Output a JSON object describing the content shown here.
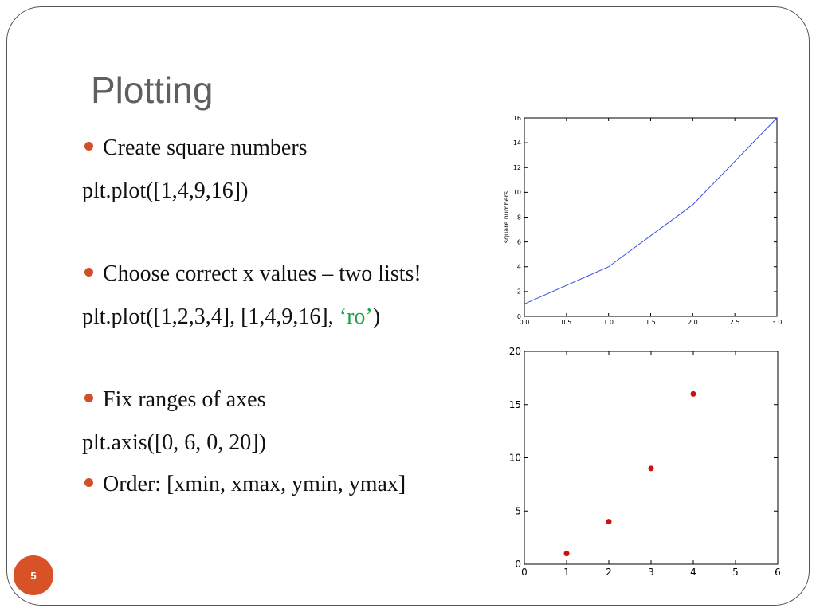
{
  "slide": {
    "title": "Plotting",
    "page_number": "5",
    "lines": [
      {
        "kind": "bullet",
        "text": "Create square numbers"
      },
      {
        "kind": "code",
        "text": "plt.plot([1,4,9,16])"
      },
      {
        "kind": "bullet",
        "text": "Choose correct x values – two lists!"
      },
      {
        "kind": "code",
        "text": "plt.plot([1,2,3,4], [1,4,9,16], ",
        "highlight": "‘ro’",
        "suffix": ")"
      },
      {
        "kind": "bullet",
        "text": "Fix ranges of axes"
      },
      {
        "kind": "code",
        "text": "plt.axis([0, 6, 0, 20])"
      },
      {
        "kind": "bullet",
        "text": "Order: [xmin, xmax, ymin, ymax]"
      }
    ],
    "colors": {
      "bullet": "#d0502a",
      "highlight": "#1fa34a",
      "title": "#5f5f5f",
      "badge": "#d95127"
    }
  },
  "chart_data": [
    {
      "type": "line",
      "x": [
        0,
        1,
        2,
        3
      ],
      "series": [
        {
          "values": [
            1,
            4,
            9,
            16
          ],
          "color": "#3b4fd8"
        }
      ],
      "xlabel": "",
      "ylabel": "square numbers",
      "xlim": [
        0,
        3
      ],
      "ylim": [
        0,
        16
      ],
      "xticks": [
        "0.0",
        "0.5",
        "1.0",
        "1.5",
        "2.0",
        "2.5",
        "3.0"
      ],
      "yticks": [
        "0",
        "2",
        "4",
        "6",
        "8",
        "10",
        "12",
        "14",
        "16"
      ],
      "grid": false
    },
    {
      "type": "scatter",
      "x": [
        1,
        2,
        3,
        4
      ],
      "series": [
        {
          "values": [
            1,
            4,
            9,
            16
          ],
          "color": "#cc1111"
        }
      ],
      "xlabel": "",
      "ylabel": "",
      "xlim": [
        0,
        6
      ],
      "ylim": [
        0,
        20
      ],
      "xticks": [
        "0",
        "1",
        "2",
        "3",
        "4",
        "5",
        "6"
      ],
      "yticks": [
        "0",
        "5",
        "10",
        "15",
        "20"
      ],
      "grid": false
    }
  ]
}
